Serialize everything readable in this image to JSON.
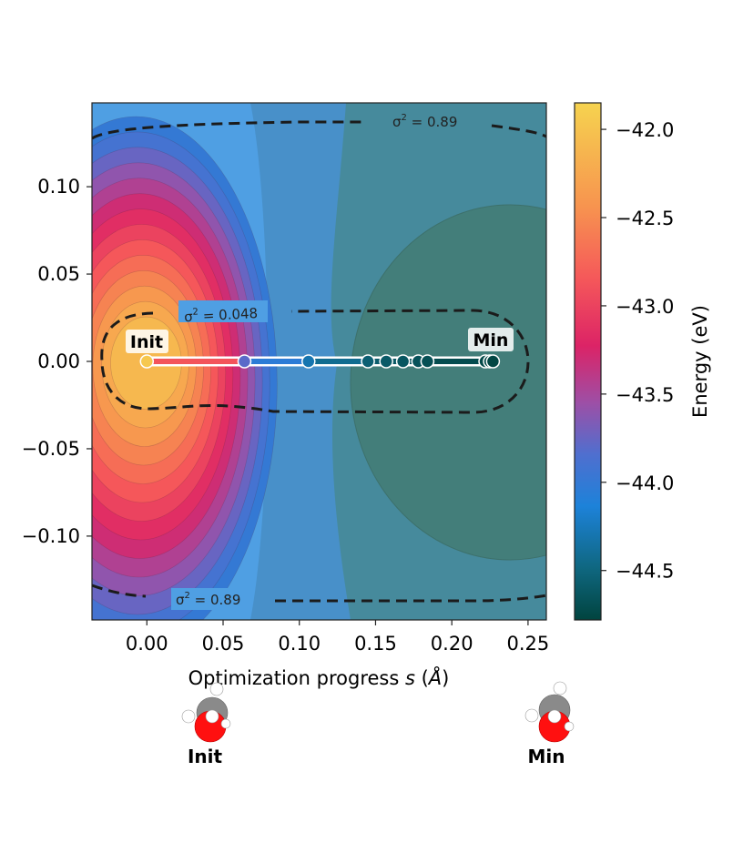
{
  "chart_data": {
    "type": "contour",
    "xlabel": "Optimization progress s (Å)",
    "xlabel_parts": [
      "Optimization progress ",
      "s",
      " (",
      "Å",
      ")"
    ],
    "ylabel": "",
    "xlim": [
      -0.036,
      0.262
    ],
    "ylim": [
      -0.148,
      0.148
    ],
    "xticks": [
      0.0,
      0.05,
      0.1,
      0.15,
      0.2,
      0.25
    ],
    "xtick_labels": [
      "0.00",
      "0.05",
      "0.10",
      "0.15",
      "0.20",
      "0.25"
    ],
    "yticks": [
      0.1,
      0.05,
      0.0,
      -0.05,
      -0.1
    ],
    "ytick_labels": [
      "0.10",
      "0.05",
      "0.00",
      "−0.05",
      "−0.10"
    ],
    "colorbar": {
      "label": "Energy (eV)",
      "range": [
        -44.78,
        -41.85
      ],
      "ticks": [
        -42.0,
        -42.5,
        -43.0,
        -43.5,
        -44.0,
        -44.5
      ],
      "tick_labels": [
        "−42.0",
        "−42.5",
        "−43.0",
        "−43.5",
        "−44.0",
        "−44.5"
      ]
    },
    "energy_levels": [
      -44.75,
      -44.5,
      -44.25,
      -44.0,
      -43.9,
      -43.75,
      -43.6,
      -43.45,
      -43.3,
      -43.15,
      -43.0,
      -42.85,
      -42.7,
      -42.55,
      -42.4,
      -42.25,
      -42.1
    ],
    "uncertainty_contours": [
      {
        "label": "σ² = 0.048",
        "label_parts": [
          "σ",
          "2",
          " = 0.048"
        ]
      },
      {
        "label": "σ² = 0.89",
        "label_parts": [
          "σ",
          "2",
          " = 0.89"
        ]
      },
      {
        "label": "σ² = 0.89",
        "label_parts": [
          "σ",
          "2",
          " = 0.89"
        ]
      }
    ],
    "path": {
      "points": [
        {
          "s": 0.0,
          "y": 0.0,
          "energy": -41.95
        },
        {
          "s": 0.064,
          "y": 0.0,
          "energy": -43.8
        },
        {
          "s": 0.106,
          "y": 0.0,
          "energy": -44.3
        },
        {
          "s": 0.145,
          "y": 0.0,
          "energy": -44.55
        },
        {
          "s": 0.157,
          "y": 0.0,
          "energy": -44.6
        },
        {
          "s": 0.168,
          "y": 0.0,
          "energy": -44.63
        },
        {
          "s": 0.178,
          "y": 0.0,
          "energy": -44.66
        },
        {
          "s": 0.184,
          "y": 0.0,
          "energy": -44.68
        },
        {
          "s": 0.222,
          "y": 0.0,
          "energy": -44.74
        },
        {
          "s": 0.225,
          "y": 0.0,
          "energy": -44.75
        },
        {
          "s": 0.227,
          "y": 0.0,
          "energy": -44.76
        }
      ],
      "start_label": "Init",
      "end_label": "Min"
    },
    "molecules": [
      {
        "label": "Init"
      },
      {
        "label": "Min"
      }
    ]
  }
}
